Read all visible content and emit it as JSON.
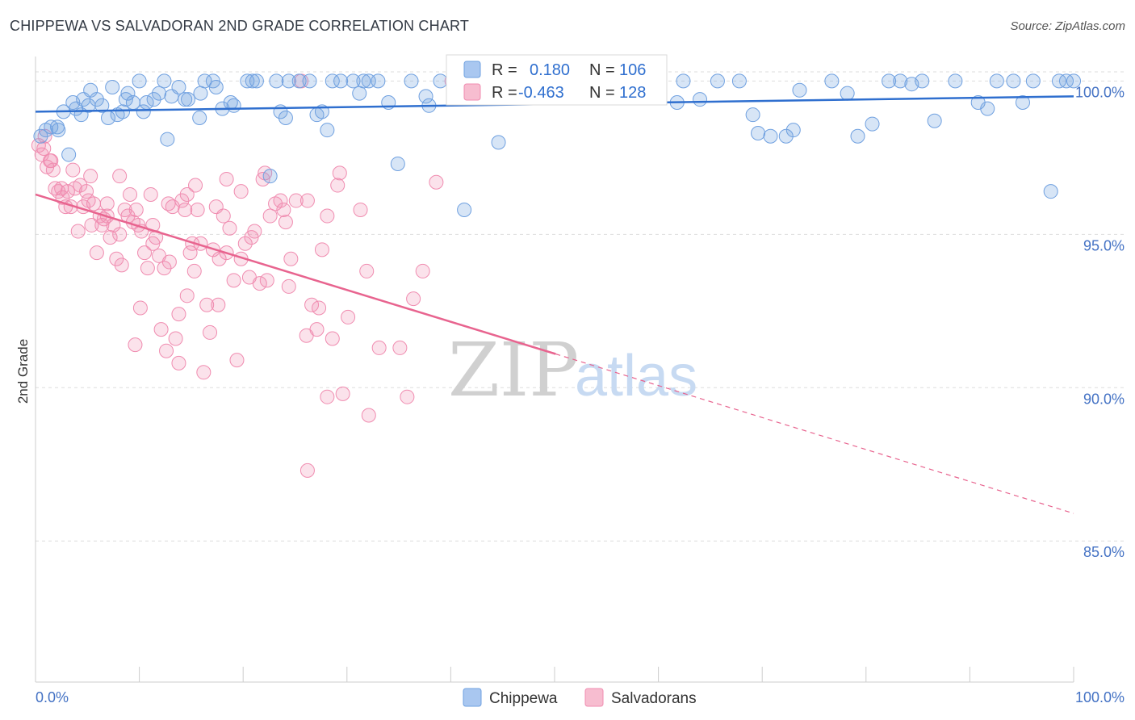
{
  "title": "CHIPPEWA VS SALVADORAN 2ND GRADE CORRELATION CHART",
  "source": "Source: ZipAtlas.com",
  "watermark": {
    "zip": "ZIP",
    "atlas": "atlas"
  },
  "colors": {
    "blue": "#6fa0e0",
    "blue_line": "#2f6fcf",
    "pink": "#f08cb0",
    "pink_line": "#e8648f",
    "tick": "#4472c4"
  },
  "legend": {
    "r_label": "R =",
    "n_label": "N =",
    "rows": [
      {
        "r": "0.180",
        "n": "106"
      },
      {
        "r": "-0.463",
        "n": "128"
      }
    ]
  },
  "bottom_legend": [
    "Chippewa",
    "Salvadorans"
  ],
  "chart_data": {
    "type": "scatter",
    "title": "CHIPPEWA VS SALVADORAN 2ND GRADE CORRELATION CHART",
    "xlabel": "",
    "ylabel": "2nd Grade",
    "xlim": [
      0,
      100
    ],
    "ylim": [
      80.4,
      100.8
    ],
    "x_tick_labels": [
      "0.0%",
      "100.0%"
    ],
    "y_ticks": [
      100,
      95,
      90,
      85
    ],
    "y_tick_labels": [
      "100.0%",
      "95.0%",
      "90.0%",
      "85.0%"
    ],
    "grid": true,
    "legend_position": "top-center",
    "series": [
      {
        "name": "Chippewa",
        "trend": {
          "x": [
            0,
            100
          ],
          "y": [
            99.0,
            99.5
          ]
        },
        "points": [
          [
            0.5,
            98.2
          ],
          [
            1,
            98.4
          ],
          [
            1.5,
            98.5
          ],
          [
            2.2,
            98.4
          ],
          [
            2.7,
            99.0
          ],
          [
            3.2,
            97.6
          ],
          [
            3.6,
            99.3
          ],
          [
            4.4,
            98.9
          ],
          [
            4.6,
            99.4
          ],
          [
            5.3,
            99.7
          ],
          [
            5.9,
            99.4
          ],
          [
            6.4,
            99.2
          ],
          [
            7,
            98.8
          ],
          [
            7.4,
            99.8
          ],
          [
            7.9,
            98.9
          ],
          [
            8.4,
            99.0
          ],
          [
            8.7,
            99.4
          ],
          [
            9.4,
            99.3
          ],
          [
            10,
            100.0
          ],
          [
            10.4,
            99.0
          ],
          [
            10.7,
            99.3
          ],
          [
            11.4,
            99.4
          ],
          [
            11.9,
            99.6
          ],
          [
            12.4,
            100.0
          ],
          [
            12.7,
            98.1
          ],
          [
            13.1,
            99.5
          ],
          [
            13.8,
            99.8
          ],
          [
            14.4,
            99.4
          ],
          [
            14.7,
            99.4
          ],
          [
            15.8,
            98.8
          ],
          [
            16.3,
            100.0
          ],
          [
            17.1,
            100.0
          ],
          [
            17.4,
            99.8
          ],
          [
            18,
            99.1
          ],
          [
            18.8,
            99.3
          ],
          [
            19.1,
            99.2
          ],
          [
            20.4,
            100.0
          ],
          [
            20.9,
            100.0
          ],
          [
            21.3,
            100.0
          ],
          [
            22.6,
            96.9
          ],
          [
            23.2,
            100.0
          ],
          [
            23.6,
            99.0
          ],
          [
            24.1,
            98.8
          ],
          [
            24.4,
            100.0
          ],
          [
            25.4,
            100.0
          ],
          [
            26.4,
            100.0
          ],
          [
            27.1,
            98.9
          ],
          [
            27.6,
            99.0
          ],
          [
            28.1,
            98.4
          ],
          [
            28.6,
            100.0
          ],
          [
            29.4,
            100.0
          ],
          [
            30.6,
            100.0
          ],
          [
            31.2,
            99.6
          ],
          [
            31.6,
            100.0
          ],
          [
            32.1,
            100.0
          ],
          [
            33,
            100.0
          ],
          [
            34,
            99.3
          ],
          [
            34.9,
            97.3
          ],
          [
            36.2,
            100.0
          ],
          [
            37.6,
            99.5
          ],
          [
            39,
            100.0
          ],
          [
            41.3,
            95.8
          ],
          [
            43.6,
            100.0
          ],
          [
            44.6,
            98.0
          ],
          [
            46.3,
            100.0
          ],
          [
            49.6,
            100.0
          ],
          [
            52.6,
            100.0
          ],
          [
            55.4,
            100.0
          ],
          [
            58.6,
            100.0
          ],
          [
            62.4,
            100.0
          ],
          [
            64,
            99.4
          ],
          [
            65.7,
            100.0
          ],
          [
            67.8,
            100.0
          ],
          [
            69.6,
            98.3
          ],
          [
            70.8,
            98.2
          ],
          [
            72.3,
            98.2
          ],
          [
            73,
            98.4
          ],
          [
            76.7,
            100.0
          ],
          [
            78.2,
            99.6
          ],
          [
            79.2,
            98.2
          ],
          [
            82.2,
            100.0
          ],
          [
            83.3,
            100.0
          ],
          [
            85.4,
            100.0
          ],
          [
            88.6,
            100.0
          ],
          [
            90.8,
            99.3
          ],
          [
            92.6,
            100.0
          ],
          [
            94.2,
            100.0
          ],
          [
            96.1,
            100.0
          ],
          [
            97.8,
            96.4
          ],
          [
            98.6,
            100.0
          ],
          [
            99.3,
            100.0
          ],
          [
            100,
            100.0
          ],
          [
            2.1,
            98.5
          ],
          [
            3.9,
            99.1
          ],
          [
            5.1,
            99.2
          ],
          [
            8.9,
            99.6
          ],
          [
            15.9,
            99.6
          ],
          [
            37.9,
            99.2
          ],
          [
            61.8,
            99.3
          ],
          [
            69.1,
            98.9
          ],
          [
            73.6,
            99.7
          ],
          [
            80.6,
            98.6
          ],
          [
            84.4,
            99.9
          ],
          [
            86.6,
            98.7
          ],
          [
            91.7,
            99.1
          ],
          [
            95.1,
            99.3
          ]
        ]
      },
      {
        "name": "Salvadorans",
        "trend": {
          "x": [
            0,
            50.1
          ],
          "y": [
            96.3,
            91.1
          ]
        },
        "trend_dashed": {
          "x": [
            50.1,
            100
          ],
          "y": [
            91.1,
            85.9
          ]
        },
        "points": [
          [
            0.3,
            97.9
          ],
          [
            0.6,
            97.6
          ],
          [
            0.9,
            98.2
          ],
          [
            1.1,
            97.2
          ],
          [
            1.4,
            97.4
          ],
          [
            1.7,
            97.1
          ],
          [
            1.9,
            96.5
          ],
          [
            2.2,
            96.4
          ],
          [
            2.5,
            96.5
          ],
          [
            2.6,
            96.2
          ],
          [
            3.1,
            96.4
          ],
          [
            3.4,
            95.9
          ],
          [
            3.8,
            96.5
          ],
          [
            4.1,
            95.1
          ],
          [
            4.3,
            96.6
          ],
          [
            4.6,
            95.9
          ],
          [
            4.9,
            96.4
          ],
          [
            5.1,
            96.1
          ],
          [
            5.4,
            95.3
          ],
          [
            5.6,
            96.0
          ],
          [
            5.9,
            94.4
          ],
          [
            6.2,
            95.6
          ],
          [
            6.4,
            95.3
          ],
          [
            6.6,
            95.5
          ],
          [
            6.9,
            96.0
          ],
          [
            7.2,
            94.9
          ],
          [
            7.5,
            95.3
          ],
          [
            7.8,
            94.2
          ],
          [
            8.1,
            95.0
          ],
          [
            8.3,
            94.0
          ],
          [
            8.6,
            95.8
          ],
          [
            8.9,
            95.6
          ],
          [
            9.1,
            96.3
          ],
          [
            9.4,
            95.4
          ],
          [
            9.6,
            91.4
          ],
          [
            9.9,
            95.3
          ],
          [
            10.2,
            95.1
          ],
          [
            10.5,
            94.4
          ],
          [
            10.8,
            93.9
          ],
          [
            11.1,
            96.3
          ],
          [
            11.3,
            95.3
          ],
          [
            11.6,
            94.9
          ],
          [
            11.9,
            94.3
          ],
          [
            12.1,
            91.9
          ],
          [
            12.4,
            93.9
          ],
          [
            12.6,
            91.2
          ],
          [
            12.9,
            94.1
          ],
          [
            13.2,
            95.9
          ],
          [
            13.5,
            91.6
          ],
          [
            13.8,
            90.8
          ],
          [
            14.1,
            96.1
          ],
          [
            14.4,
            95.8
          ],
          [
            14.6,
            93.0
          ],
          [
            14.9,
            94.4
          ],
          [
            15.1,
            94.7
          ],
          [
            15.4,
            96.6
          ],
          [
            15.6,
            95.8
          ],
          [
            15.9,
            94.7
          ],
          [
            16.2,
            90.5
          ],
          [
            16.5,
            92.7
          ],
          [
            16.8,
            91.8
          ],
          [
            17.1,
            94.5
          ],
          [
            17.4,
            95.9
          ],
          [
            17.7,
            94.2
          ],
          [
            18.1,
            95.6
          ],
          [
            18.4,
            94.4
          ],
          [
            18.7,
            95.2
          ],
          [
            19.1,
            93.5
          ],
          [
            19.4,
            90.9
          ],
          [
            19.8,
            96.4
          ],
          [
            20.2,
            94.7
          ],
          [
            20.6,
            93.6
          ],
          [
            21.1,
            95.1
          ],
          [
            21.6,
            93.4
          ],
          [
            22.1,
            97.0
          ],
          [
            22.6,
            95.6
          ],
          [
            23.1,
            96.0
          ],
          [
            23.6,
            96.1
          ],
          [
            24.1,
            95.4
          ],
          [
            24.6,
            94.2
          ],
          [
            25.6,
            100.0
          ],
          [
            26.1,
            91.7
          ],
          [
            26.6,
            92.7
          ],
          [
            27.1,
            91.9
          ],
          [
            27.6,
            94.5
          ],
          [
            28.1,
            89.7
          ],
          [
            28.6,
            91.6
          ],
          [
            29.1,
            96.6
          ],
          [
            29.6,
            89.8
          ],
          [
            30.1,
            92.3
          ],
          [
            31.3,
            95.8
          ],
          [
            32.1,
            89.1
          ],
          [
            33.1,
            91.3
          ],
          [
            35.1,
            91.3
          ],
          [
            35.8,
            89.7
          ],
          [
            36.4,
            92.9
          ],
          [
            37.3,
            93.8
          ],
          [
            38.6,
            96.7
          ],
          [
            40.1,
            100.0
          ],
          [
            26.2,
            87.3
          ],
          [
            5.3,
            96.9
          ],
          [
            8.1,
            96.9
          ],
          [
            10.1,
            92.6
          ],
          [
            11.3,
            94.7
          ],
          [
            13.8,
            92.4
          ],
          [
            15.3,
            93.8
          ],
          [
            17.6,
            92.7
          ],
          [
            18.4,
            96.8
          ],
          [
            20.8,
            94.9
          ],
          [
            22.3,
            93.5
          ],
          [
            23.9,
            95.8
          ],
          [
            25.1,
            96.1
          ],
          [
            26.2,
            96.1
          ],
          [
            27.3,
            92.6
          ],
          [
            28.1,
            95.6
          ],
          [
            0.8,
            97.8
          ],
          [
            1.5,
            97.4
          ],
          [
            2.9,
            95.9
          ],
          [
            3.6,
            97.1
          ],
          [
            6.9,
            95.6
          ],
          [
            9.7,
            95.8
          ],
          [
            12.8,
            96.0
          ],
          [
            14.6,
            96.3
          ],
          [
            19.8,
            94.2
          ],
          [
            21.9,
            96.8
          ],
          [
            24.4,
            93.3
          ],
          [
            29.3,
            97.0
          ],
          [
            31.9,
            93.8
          ]
        ]
      }
    ]
  }
}
